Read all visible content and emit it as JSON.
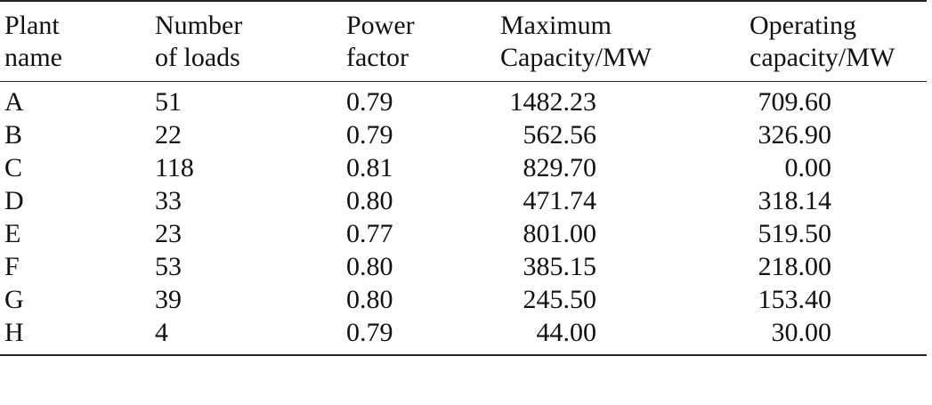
{
  "table": {
    "headers": [
      [
        "Plant",
        "name"
      ],
      [
        "Number",
        "of loads"
      ],
      [
        "Power",
        "factor"
      ],
      [
        "Maximum",
        "Capacity/MW"
      ],
      [
        "Operating",
        "capacity/MW"
      ]
    ],
    "rows": [
      [
        "A",
        "51",
        "0.79",
        "1482.23",
        "709.60"
      ],
      [
        "B",
        "22",
        "0.79",
        "562.56",
        "326.90"
      ],
      [
        "C",
        "118",
        "0.81",
        "829.70",
        "0.00"
      ],
      [
        "D",
        "33",
        "0.80",
        "471.74",
        "318.14"
      ],
      [
        "E",
        "23",
        "0.77",
        "801.00",
        "519.50"
      ],
      [
        "F",
        "53",
        "0.80",
        "385.15",
        "218.00"
      ],
      [
        "G",
        "39",
        "0.80",
        "245.50",
        "153.40"
      ],
      [
        "H",
        "4",
        "0.79",
        "44.00",
        "30.00"
      ]
    ]
  }
}
